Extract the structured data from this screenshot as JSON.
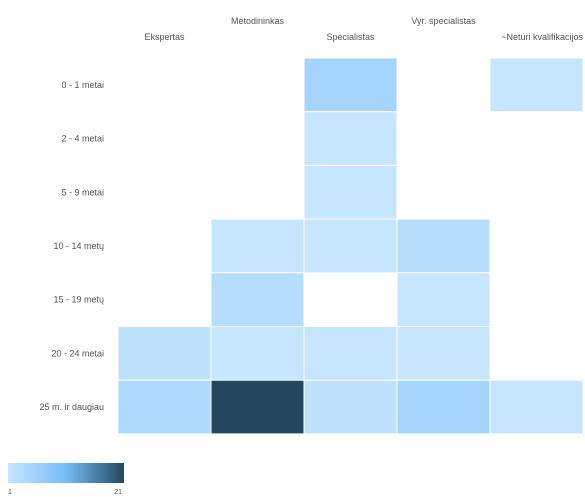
{
  "chart_data": {
    "type": "heatmap",
    "x_categories": [
      "Ekspertas",
      "Metodininkas",
      "Specialistas",
      "Vyr. specialistas",
      "~Neturi kvalifikacijos"
    ],
    "y_categories": [
      "0 - 1 metai",
      "2 - 4 metai",
      "5 - 9 metai",
      "10 - 14 metų",
      "15 - 19 metų",
      "20 - 24 metai",
      "25 m. ir daugiau"
    ],
    "cells": [
      {
        "x": "Specialistas",
        "y": "0 - 1 metai",
        "value": 5
      },
      {
        "x": "~Neturi kvalifikacijos",
        "y": "0 - 1 metai",
        "value": 1
      },
      {
        "x": "Specialistas",
        "y": "2 - 4 metai",
        "value": 1
      },
      {
        "x": "Specialistas",
        "y": "5 - 9 metai",
        "value": 1
      },
      {
        "x": "Metodininkas",
        "y": "10 - 14 metų",
        "value": 1
      },
      {
        "x": "Specialistas",
        "y": "10 - 14 metų",
        "value": 1
      },
      {
        "x": "Vyr. specialistas",
        "y": "10 - 14 metų",
        "value": 3
      },
      {
        "x": "Metodininkas",
        "y": "15 - 19 metų",
        "value": 3
      },
      {
        "x": "Vyr. specialistas",
        "y": "15 - 19 metų",
        "value": 1
      },
      {
        "x": "Ekspertas",
        "y": "20 - 24 metai",
        "value": 2
      },
      {
        "x": "Metodininkas",
        "y": "20 - 24 metai",
        "value": 1
      },
      {
        "x": "Specialistas",
        "y": "20 - 24 metai",
        "value": 1
      },
      {
        "x": "Vyr. specialistas",
        "y": "20 - 24 metai",
        "value": 1
      },
      {
        "x": "Ekspertas",
        "y": "25 m. ir daugiau",
        "value": 4
      },
      {
        "x": "Metodininkas",
        "y": "25 m. ir daugiau",
        "value": 21
      },
      {
        "x": "Specialistas",
        "y": "25 m. ir daugiau",
        "value": 2
      },
      {
        "x": "Vyr. specialistas",
        "y": "25 m. ir daugiau",
        "value": 5
      },
      {
        "x": "~Neturi kvalifikacijos",
        "y": "25 m. ir daugiau",
        "value": 1
      }
    ],
    "color_scale": {
      "min": 1,
      "max": 21,
      "min_label": "1",
      "max_label": "21",
      "colors": [
        "#c6e5ff",
        "#76bdf7",
        "#23485f"
      ]
    },
    "grid": false,
    "legend_position": "bottom-left"
  }
}
